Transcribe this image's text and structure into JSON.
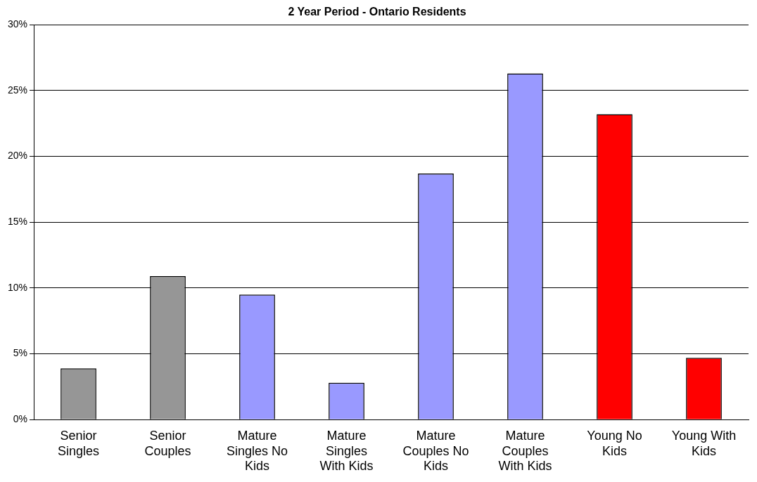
{
  "chart_data": {
    "type": "bar",
    "title": "2 Year Period - Ontario Residents",
    "categories": [
      "Senior Singles",
      "Senior Couples",
      "Mature Singles No Kids",
      "Mature Singles With Kids",
      "Mature Couples No Kids",
      "Mature Couples With Kids",
      "Young No Kids",
      "Young With Kids"
    ],
    "values": [
      3.9,
      10.9,
      9.5,
      2.8,
      18.7,
      26.3,
      23.2,
      4.7
    ],
    "colors": [
      "#969696",
      "#969696",
      "#9999ff",
      "#9999ff",
      "#9999ff",
      "#9999ff",
      "#ff0000",
      "#ff0000"
    ],
    "ylim": [
      0,
      30
    ],
    "yticks": [
      {
        "value": 0,
        "label": "0%"
      },
      {
        "value": 5,
        "label": "5%"
      },
      {
        "value": 10,
        "label": "10%"
      },
      {
        "value": 15,
        "label": "15%"
      },
      {
        "value": 20,
        "label": "20%"
      },
      {
        "value": 25,
        "label": "25%"
      },
      {
        "value": 30,
        "label": "30%"
      }
    ],
    "grid": "y",
    "legend": false
  }
}
